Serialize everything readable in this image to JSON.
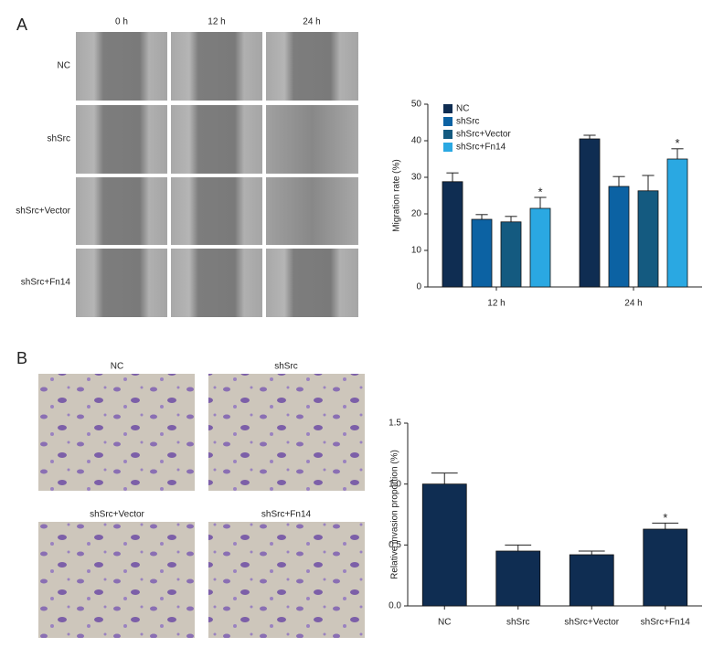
{
  "figure": {
    "panel_a": {
      "label": "A",
      "columns": [
        "0 h",
        "12 h",
        "24 h"
      ],
      "rows": [
        "NC",
        "shSrc",
        "shSrc+Vector",
        "shSrc+Fn14"
      ]
    },
    "panel_b": {
      "label": "B",
      "images": [
        "NC",
        "shSrc",
        "shSrc+Vector",
        "shSrc+Fn14"
      ]
    }
  },
  "chart_data": [
    {
      "type": "bar",
      "ylabel": "Migration rate (%)",
      "categories": [
        "12 h",
        "24 h"
      ],
      "series": [
        {
          "name": "NC",
          "color": "#0f2d52",
          "values": [
            28.8,
            40.5
          ],
          "errors": [
            2.4,
            1.0
          ]
        },
        {
          "name": "shSrc",
          "color": "#0c62a3",
          "values": [
            18.5,
            27.5
          ],
          "errors": [
            1.3,
            2.7
          ]
        },
        {
          "name": "shSrc+Vector",
          "color": "#145a80",
          "values": [
            17.8,
            26.3
          ],
          "errors": [
            1.5,
            4.2
          ]
        },
        {
          "name": "shSrc+Fn14",
          "color": "#2aa8e2",
          "values": [
            21.5,
            35.0
          ],
          "errors": [
            3.0,
            2.8
          ]
        }
      ],
      "annotations": [
        {
          "text": "*",
          "series": 3,
          "category": 0
        },
        {
          "text": "*",
          "series": 3,
          "category": 1
        }
      ],
      "ylim": [
        0,
        50
      ],
      "yticks": [
        0,
        10,
        20,
        30,
        40,
        50
      ],
      "legend": "upper left"
    },
    {
      "type": "bar",
      "ylabel": "Relative invasion proportion (%)",
      "categories": [
        "NC",
        "shSrc",
        "shSrc+Vector",
        "shSrc+Fn14"
      ],
      "values": [
        1.0,
        0.45,
        0.42,
        0.63
      ],
      "errors": [
        0.09,
        0.05,
        0.03,
        0.05
      ],
      "color": "#0f2d52",
      "annotations": [
        {
          "text": "*",
          "category": 3
        }
      ],
      "ylim": [
        0,
        1.5
      ],
      "yticks": [
        {
          "value": 0,
          "label": "0.0"
        },
        0.5,
        {
          "value": 1,
          "label": "1.0"
        },
        1.5
      ]
    }
  ]
}
